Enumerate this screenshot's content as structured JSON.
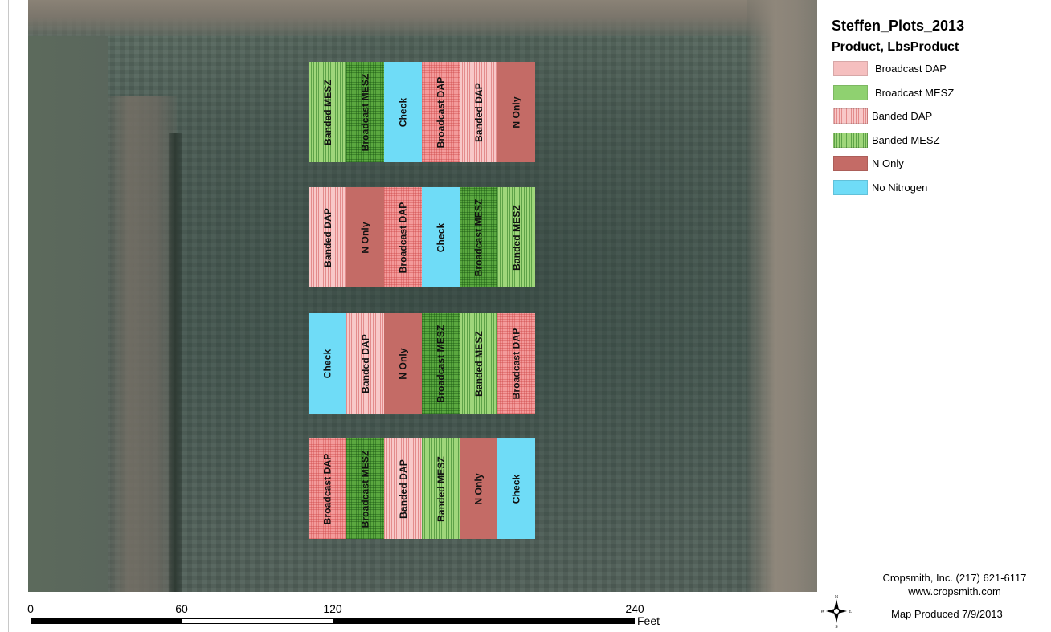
{
  "map": {
    "title": "Steffen_Plots_2013",
    "subtitle": "Product, LbsProduct"
  },
  "legend": [
    {
      "label": "Broadcast DAP",
      "key": "bdap_light",
      "color": "#f5bfbf"
    },
    {
      "label": "Broadcast MESZ",
      "key": "bmesz_light",
      "color": "#8fd170"
    },
    {
      "label": "Banded DAP",
      "key": "banded_dap",
      "color": "#f8c8c8"
    },
    {
      "label": "Banded MESZ",
      "key": "banded_mesz",
      "color": "#9fd67a"
    },
    {
      "label": "N Only",
      "key": "n_only",
      "color": "#c46b66"
    },
    {
      "label": "No Nitrogen",
      "key": "no_nitrogen",
      "color": "#6fdcf7"
    }
  ],
  "plots": [
    [
      {
        "label": "Banded MESZ",
        "style": "bandmesz"
      },
      {
        "label": "Broadcast MESZ",
        "style": "bcastmesz"
      },
      {
        "label": "Check",
        "style": "check"
      },
      {
        "label": "Broadcast DAP",
        "style": "bcastdap"
      },
      {
        "label": "Banded DAP",
        "style": "banddap"
      },
      {
        "label": "N Only",
        "style": "nonly"
      }
    ],
    [
      {
        "label": "Banded DAP",
        "style": "banddap"
      },
      {
        "label": "N Only",
        "style": "nonly"
      },
      {
        "label": "Broadcast DAP",
        "style": "bcastdap"
      },
      {
        "label": "Check",
        "style": "check"
      },
      {
        "label": "Broadcast MESZ",
        "style": "bcastmesz"
      },
      {
        "label": "Banded MESZ",
        "style": "bandmesz"
      }
    ],
    [
      {
        "label": "Check",
        "style": "check"
      },
      {
        "label": "Banded DAP",
        "style": "banddap"
      },
      {
        "label": "N Only",
        "style": "nonly"
      },
      {
        "label": "Broadcast MESZ",
        "style": "bcastmesz"
      },
      {
        "label": "Banded MESZ",
        "style": "bandmesz"
      },
      {
        "label": "Broadcast DAP",
        "style": "bcastdap"
      }
    ],
    [
      {
        "label": "Broadcast DAP",
        "style": "bcastdap"
      },
      {
        "label": "Broadcast MESZ",
        "style": "bcastmesz"
      },
      {
        "label": "Banded DAP",
        "style": "banddap"
      },
      {
        "label": "Banded MESZ",
        "style": "bandmesz"
      },
      {
        "label": "N Only",
        "style": "nonly"
      },
      {
        "label": "Check",
        "style": "check"
      }
    ]
  ],
  "scalebar": {
    "labels": [
      "0",
      "60",
      "120",
      "240"
    ],
    "values": [
      0,
      60,
      120,
      240
    ],
    "unit": "Feet"
  },
  "credits": {
    "line1": "Cropsmith, Inc. (217) 621-6117",
    "line2": "www.cropsmith.com",
    "date": "Map Produced 7/9/2013"
  },
  "compass": {
    "n": "N",
    "s": "S",
    "e": "E",
    "w": "W"
  }
}
